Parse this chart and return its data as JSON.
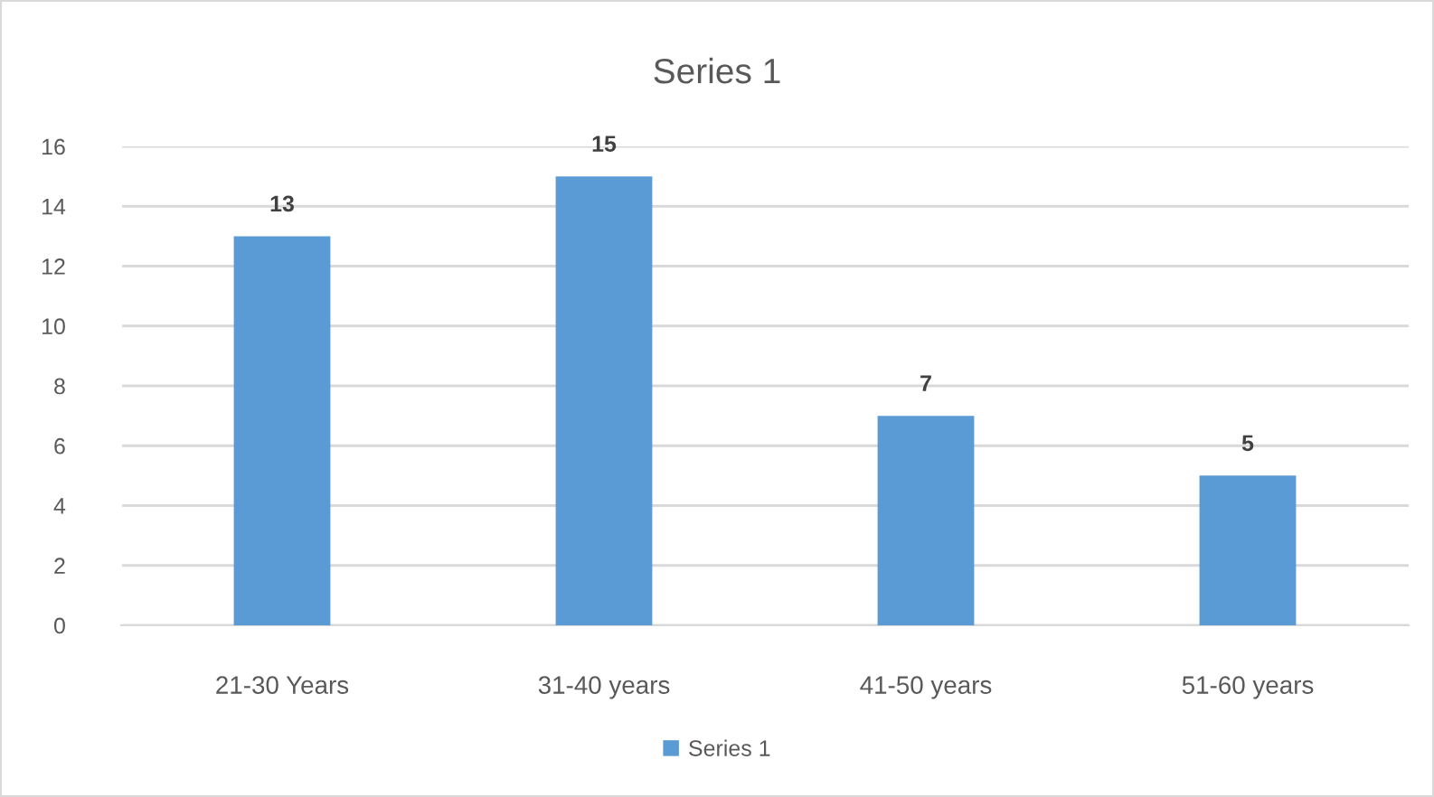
{
  "chart_data": {
    "type": "bar",
    "title": "Series 1",
    "categories": [
      "21-30 Years",
      "31-40 years",
      "41-50 years",
      "51-60 years"
    ],
    "series": [
      {
        "name": "Series 1",
        "color": "#5b9bd5",
        "values": [
          13,
          15,
          7,
          5
        ]
      }
    ],
    "ylim": [
      0,
      16
    ],
    "yticks": [
      0,
      2,
      4,
      6,
      8,
      10,
      12,
      14,
      16
    ],
    "grid": "y",
    "legend": "bottom",
    "data_labels": true
  }
}
